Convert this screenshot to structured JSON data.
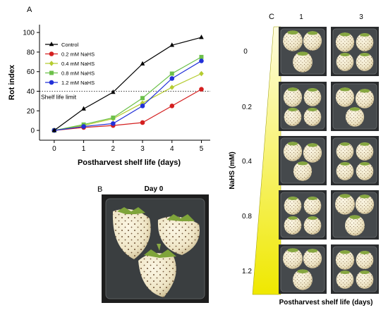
{
  "panels": {
    "a_letter": "A",
    "b_letter": "B",
    "c_letter": "C"
  },
  "chart_data": {
    "type": "line",
    "x": [
      0,
      1,
      2,
      3,
      4,
      5
    ],
    "xlabel": "Postharvest shelf life (days)",
    "ylabel": "Rot index",
    "xlim": [
      -0.5,
      5.3
    ],
    "ylim": [
      -10,
      108
    ],
    "xticks": [
      0,
      1,
      2,
      3,
      4,
      5
    ],
    "yticks": [
      0,
      20,
      40,
      60,
      80,
      100
    ],
    "grid": false,
    "legend_position": "top-left",
    "series": [
      {
        "name": "Control",
        "color": "#000000",
        "marker": "triangle",
        "values": [
          0,
          22,
          39,
          68,
          87,
          95
        ]
      },
      {
        "name": "0.2 mM NaHS",
        "color": "#d42020",
        "marker": "circle",
        "values": [
          0,
          3,
          5,
          8,
          25,
          42
        ]
      },
      {
        "name": "0.4 mM NaHS",
        "color": "#b5cc30",
        "marker": "diamond",
        "values": [
          0,
          5,
          12,
          28,
          44,
          58
        ]
      },
      {
        "name": "0.8 mM NaHS",
        "color": "#6cc04a",
        "marker": "square",
        "values": [
          0,
          6,
          13,
          33,
          58,
          75
        ]
      },
      {
        "name": "1.2 mM NaHS",
        "color": "#2230d8",
        "marker": "circle",
        "values": [
          0,
          4,
          7,
          25,
          53,
          71
        ]
      }
    ],
    "reference_line": {
      "y": 40,
      "label": "Shelf life limit",
      "style": "dotted"
    }
  },
  "panel_b": {
    "title": "Day 0"
  },
  "panel_c": {
    "col_labels": [
      "1",
      "3"
    ],
    "row_labels": [
      "0",
      "0.2",
      "0.4",
      "0.8",
      "1.2"
    ],
    "y_label": "NaHS (mM)",
    "x_label": "Postharvest shelf life (days)",
    "wedge_color": "#f3f000"
  }
}
